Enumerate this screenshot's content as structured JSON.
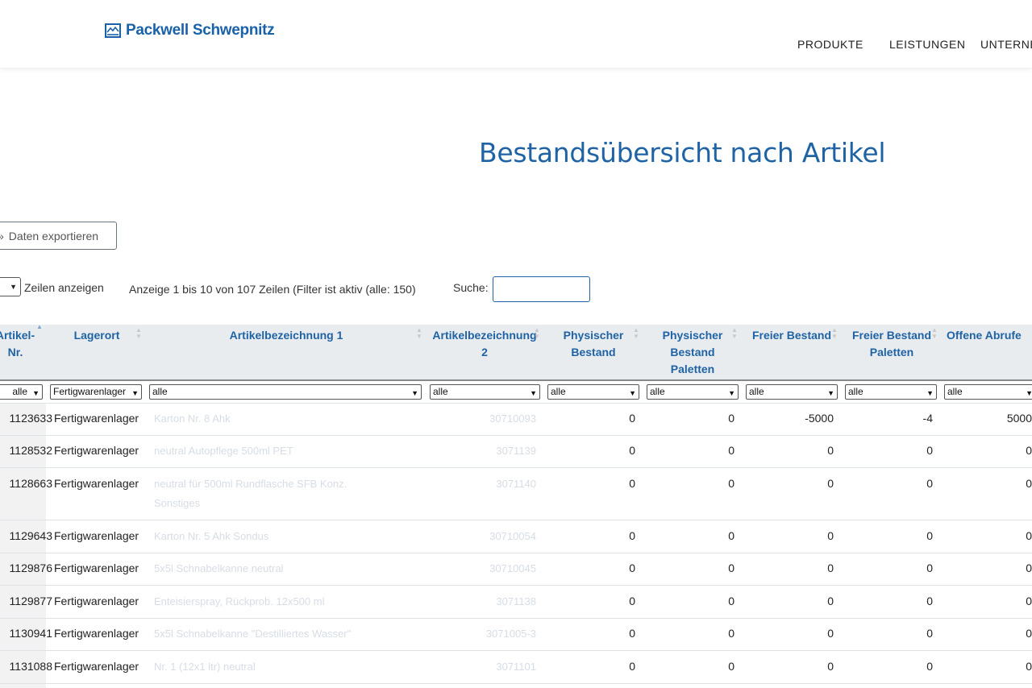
{
  "header": {
    "logo_text": "Packwell Schwepnitz",
    "nav": [
      "PRODUKTE",
      "LEISTUNGEN",
      "UNTERNE"
    ]
  },
  "page": {
    "title": "Bestandsübersicht nach Artikel",
    "export_label": "Daten exportieren",
    "length_label": "Zeilen anzeigen",
    "info": "Anzeige 1 bis 10 von 107 Zeilen (Filter ist aktiv (alle: 150)",
    "search_label": "Suche:",
    "search_value": ""
  },
  "table": {
    "headers": [
      "Artikel-Nr.",
      "Lagerort",
      "Artikelbezeichnung 1",
      "Artikelbezeichnung 2",
      "Physischer Bestand",
      "Physischer Bestand Paletten",
      "Freier Bestand",
      "Freier Bestand Paletten",
      "Offene Abrufe"
    ],
    "filters": [
      "alle",
      "Fertigwarenlager",
      "alle",
      "alle",
      "alle",
      "alle",
      "alle",
      "alle",
      "alle"
    ],
    "rows": [
      [
        "1123633",
        "Fertigwarenlager",
        "Karton Nr. 8 Ahk",
        "30710093",
        "0",
        "0",
        "-5000",
        "-4",
        "5000"
      ],
      [
        "1128532",
        "Fertigwarenlager",
        "neutral Autopflege 500ml PET",
        "3071139",
        "0",
        "0",
        "0",
        "0",
        "0"
      ],
      [
        "1128663",
        "Fertigwarenlager",
        "neutral für 500ml Rundflasche SFB Konz.",
        "3071140",
        "0",
        "0",
        "0",
        "0",
        "0"
      ],
      [
        "1129643",
        "Fertigwarenlager",
        "Karton Nr. 5 Ahk Sondus",
        "30710054",
        "0",
        "0",
        "0",
        "0",
        "0"
      ],
      [
        "1129876",
        "Fertigwarenlager",
        "5x5l Schnabelkanne neutral",
        "30710045",
        "0",
        "0",
        "0",
        "0",
        "0"
      ],
      [
        "1129877",
        "Fertigwarenlager",
        "Enteisierspray, Rückprob. 12x500 ml",
        "3071138",
        "0",
        "0",
        "0",
        "0",
        "0"
      ],
      [
        "1130941",
        "Fertigwarenlager",
        "5x5l Schnabelkanne \"Destilliertes Wasser\"",
        "3071005-3",
        "0",
        "0",
        "0",
        "0",
        "0"
      ],
      [
        "1131088",
        "Fertigwarenlager",
        "Nr. 1 (12x1 ltr) neutral",
        "3071101",
        "0",
        "0",
        "0",
        "0",
        "0"
      ]
    ],
    "row2_extra": "Sonstiges"
  },
  "colors": {
    "brand": "#1f63a5",
    "header_bg": "#e9ecef"
  }
}
